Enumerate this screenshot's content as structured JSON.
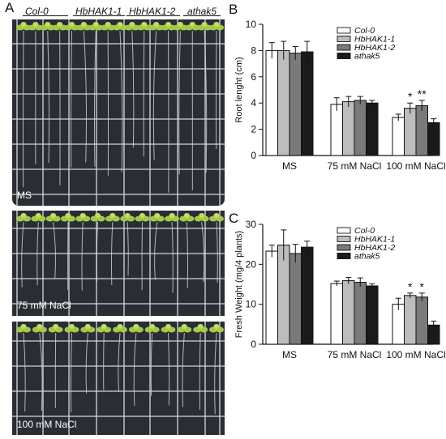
{
  "panels": {
    "a": "A",
    "b": "B",
    "c": "C"
  },
  "plates": {
    "genotypes": [
      "Col-0",
      "HbHAK1-1",
      "HbHAK1-2",
      "athak5"
    ],
    "conditions": [
      "MS",
      "75 mM NaCl",
      "100 mM NaCl"
    ]
  },
  "colors": {
    "plate_background": "#2a2d33",
    "grid": "#cfd3d6",
    "seedling": "#a6c84a",
    "root": "#d7dadc",
    "series": [
      "#ffffff",
      "#bdbdbd",
      "#7a7a7a",
      "#1a1a1a"
    ]
  },
  "chart_data": [
    {
      "type": "bar",
      "panel": "B",
      "ylabel": "Root lenght (cm)",
      "categories": [
        "MS",
        "75 mM NaCl",
        "100 mM NaCl"
      ],
      "ylim": [
        0,
        10
      ],
      "yticks": [
        0,
        2,
        4,
        6,
        8,
        10
      ],
      "legend_position": "top-right",
      "series": [
        {
          "name": "Col-0",
          "values": [
            8.0,
            3.9,
            2.9
          ],
          "errors": [
            0.6,
            0.5,
            0.25
          ]
        },
        {
          "name": "HbHAK1-1",
          "values": [
            8.0,
            4.1,
            3.6
          ],
          "errors": [
            0.7,
            0.4,
            0.4
          ]
        },
        {
          "name": "HbHAK1-2",
          "values": [
            7.8,
            4.2,
            3.8
          ],
          "errors": [
            0.5,
            0.3,
            0.4
          ]
        },
        {
          "name": "athak5",
          "values": [
            7.9,
            4.0,
            2.5
          ],
          "errors": [
            0.8,
            0.2,
            0.3
          ]
        }
      ],
      "annotations": [
        {
          "category": "100 mM NaCl",
          "series": "HbHAK1-1",
          "text": "*"
        },
        {
          "category": "100 mM NaCl",
          "series": "HbHAK1-2",
          "text": "**"
        }
      ]
    },
    {
      "type": "bar",
      "panel": "C",
      "ylabel": "Fresh Weight (mg/4 plants)",
      "categories": [
        "MS",
        "75 mM NaCl",
        "100 mM NaCl"
      ],
      "ylim": [
        0,
        30
      ],
      "yticks": [
        0,
        10,
        20,
        30
      ],
      "legend_position": "top-right",
      "series": [
        {
          "name": "Col-0",
          "values": [
            23.3,
            15.2,
            10.0
          ],
          "errors": [
            1.5,
            0.6,
            1.5
          ]
        },
        {
          "name": "HbHAK1-1",
          "values": [
            24.8,
            15.9,
            12.2
          ],
          "errors": [
            3.8,
            0.8,
            0.6
          ]
        },
        {
          "name": "HbHAK1-2",
          "values": [
            22.7,
            15.5,
            11.8
          ],
          "errors": [
            2.3,
            1.1,
            1.0
          ]
        },
        {
          "name": "athak5",
          "values": [
            24.3,
            14.6,
            4.8
          ],
          "errors": [
            1.5,
            0.5,
            1.0
          ]
        }
      ],
      "annotations": [
        {
          "category": "100 mM NaCl",
          "series": "HbHAK1-1",
          "text": "*"
        },
        {
          "category": "100 mM NaCl",
          "series": "HbHAK1-2",
          "text": "*"
        }
      ]
    }
  ]
}
